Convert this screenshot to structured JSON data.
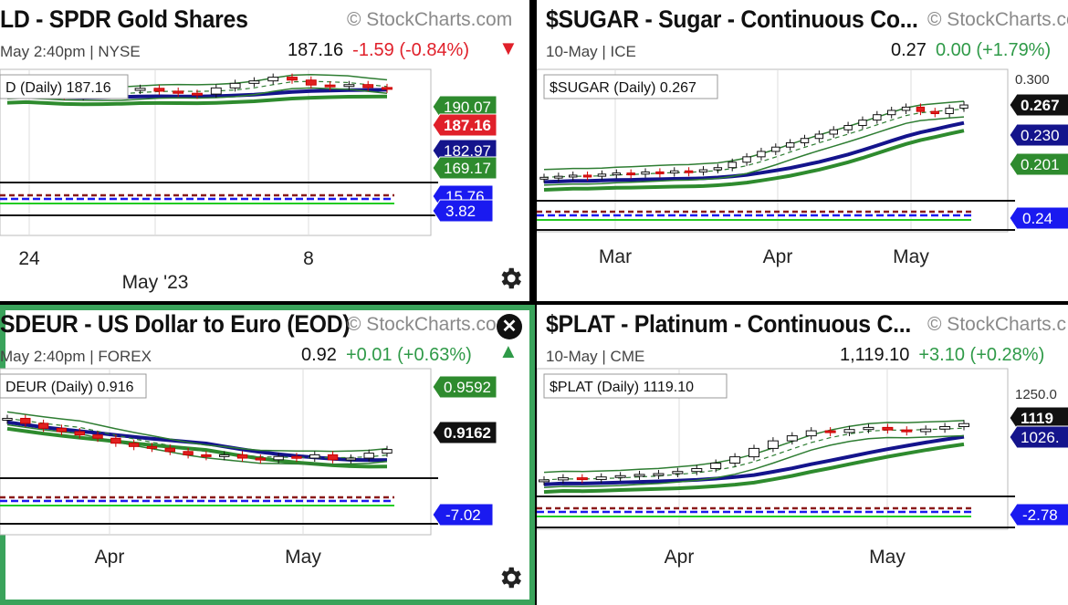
{
  "panels": [
    {
      "title": "LD - SPDR Gold Shares",
      "brand": "© StockCharts.com",
      "subtitle": "May 2:40pm | NYSE",
      "price": "187.16",
      "change": "-1.59 (-0.84%)",
      "direction": "down",
      "legend": "D (Daily) 187.16",
      "x_labels": [
        "24",
        "May '23",
        "8"
      ],
      "price_tags": [
        {
          "text": "190.07",
          "color": "#2e8b2e"
        },
        {
          "text": "187.16",
          "color": "#e0202a"
        },
        {
          "text": "182.97",
          "color": "#14148c"
        },
        {
          "text": "169.17",
          "color": "#2e8b2e"
        }
      ],
      "indicator_tags": [
        {
          "text": "15.76",
          "color": "#1a1af0"
        },
        {
          "text": "3.82",
          "color": "#1a1af0"
        }
      ]
    },
    {
      "title": "$SUGAR - Sugar - Continuous Co...",
      "brand": "© StockCharts.com",
      "subtitle": "10-May | ICE",
      "price": "0.27",
      "change": "0.00 (+1.79%)",
      "direction": "up",
      "legend": "$SUGAR (Daily) 0.267",
      "axis_top": "0.300",
      "x_labels": [
        "Mar",
        "Apr",
        "May"
      ],
      "price_tags": [
        {
          "text": "0.267",
          "color": "#111111"
        },
        {
          "text": "0.230",
          "color": "#14148c"
        },
        {
          "text": "0.201",
          "color": "#2e8b2e"
        }
      ],
      "indicator_tags": [
        {
          "text": "0.24",
          "color": "#1a1af0"
        }
      ]
    },
    {
      "title": "SDEUR - US Dollar to Euro (EOD)",
      "brand": "© StockCharts.com",
      "subtitle": "May 2:40pm | FOREX",
      "price": "0.92",
      "change": "+0.01 (+0.63%)",
      "direction": "up",
      "legend": "DEUR (Daily) 0.916",
      "x_labels": [
        "Apr",
        "May"
      ],
      "price_tags": [
        {
          "text": "0.9592",
          "color": "#2e8b2e"
        },
        {
          "text": "0.9162",
          "color": "#111111"
        }
      ],
      "indicator_tags": [
        {
          "text": "-7.02",
          "color": "#1a1af0"
        }
      ]
    },
    {
      "title": "$PLAT - Platinum - Continuous C...",
      "brand": "© StockCharts.c",
      "subtitle": "10-May | CME",
      "price": "1,119.10",
      "change": "+3.10 (+0.28%)",
      "direction": "up",
      "legend": "$PLAT (Daily) 1119.10",
      "axis_top": "1250.0",
      "x_labels": [
        "Apr",
        "May"
      ],
      "price_tags": [
        {
          "text": "1119",
          "color": "#111111"
        },
        {
          "text": "1026.",
          "color": "#14148c"
        }
      ],
      "indicator_tags": [
        {
          "text": "-2.78",
          "color": "#1a1af0"
        }
      ]
    }
  ],
  "chart_data": [
    {
      "type": "line",
      "title": "LD - SPDR Gold Shares",
      "last_close": 187.16,
      "series": [
        {
          "values": [
            186.5,
            186.8,
            186.0,
            185.5,
            185.8,
            186.3,
            186.9,
            187.4,
            186.7,
            186.2,
            186.0,
            187.5,
            188.6,
            189.2,
            190.1,
            189.4,
            188.2,
            187.9,
            188.3,
            187.6,
            187.16
          ]
        }
      ],
      "ylim": [
        165,
        192
      ]
    },
    {
      "type": "line",
      "title": "$SUGAR - Sugar - Continuous Co...",
      "last_close": 0.267,
      "series": [
        {
          "values": [
            0.2,
            0.201,
            0.202,
            0.201,
            0.203,
            0.204,
            0.203,
            0.205,
            0.204,
            0.206,
            0.205,
            0.207,
            0.209,
            0.214,
            0.219,
            0.224,
            0.228,
            0.232,
            0.236,
            0.24,
            0.244,
            0.248,
            0.253,
            0.258,
            0.262,
            0.265,
            0.261,
            0.259,
            0.264,
            0.267
          ]
        }
      ],
      "ylim": [
        0.18,
        0.3
      ]
    },
    {
      "type": "line",
      "title": "SDEUR - US Dollar to Euro (EOD)",
      "last_close": 0.9162,
      "series": [
        {
          "values": [
            0.935,
            0.932,
            0.929,
            0.927,
            0.925,
            0.923,
            0.92,
            0.918,
            0.917,
            0.915,
            0.913,
            0.912,
            0.913,
            0.911,
            0.91,
            0.912,
            0.911,
            0.913,
            0.91,
            0.911,
            0.914,
            0.9162
          ]
        }
      ],
      "ylim": [
        0.9,
        0.965
      ]
    },
    {
      "type": "line",
      "title": "$PLAT - Platinum - Continuous C...",
      "last_close": 1119.1,
      "series": [
        {
          "values": [
            985,
            990,
            986,
            992,
            995,
            998,
            1000,
            1005,
            1012,
            1025,
            1040,
            1060,
            1078,
            1090,
            1102,
            1098,
            1105,
            1110,
            1104,
            1100,
            1106,
            1112,
            1119.1
          ]
        }
      ],
      "ylim": [
        950,
        1250
      ]
    }
  ]
}
